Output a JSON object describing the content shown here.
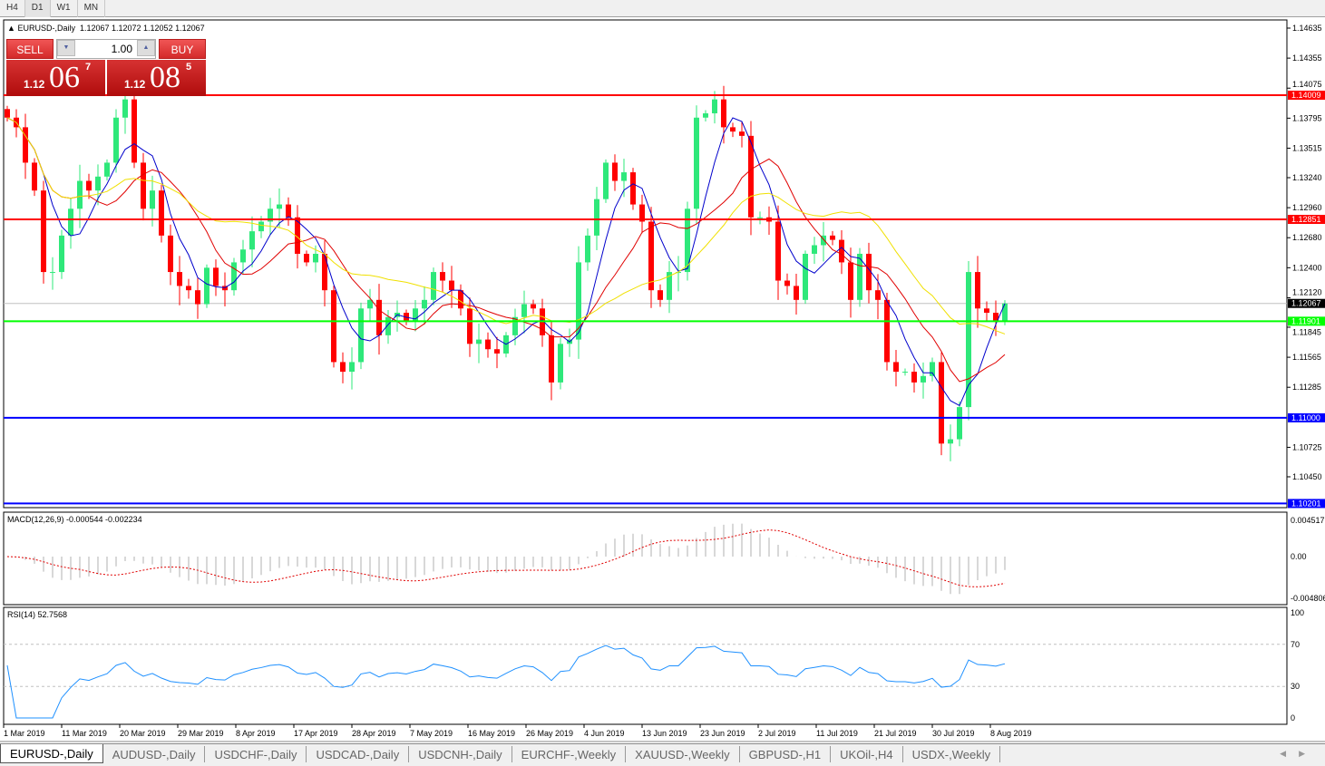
{
  "timeframes": [
    "H4",
    "D1",
    "W1",
    "MN"
  ],
  "active_timeframe": "D1",
  "chart": {
    "title": "EURUSD-,Daily",
    "ohlc_text": "1.12067 1.12072 1.12052 1.12067",
    "collapse_icon": "triangle-up-icon"
  },
  "trade_panel": {
    "sell_label": "SELL",
    "buy_label": "BUY",
    "lot": "1.00",
    "sell_price": {
      "prefix": "1.12",
      "big": "06",
      "sup": "7"
    },
    "buy_price": {
      "prefix": "1.12",
      "big": "08",
      "sup": "5"
    }
  },
  "price_axis": [
    "1.14635",
    "1.14355",
    "1.14075",
    "1.13795",
    "1.13515",
    "1.13240",
    "1.12960",
    "1.12680",
    "1.12400",
    "1.12120",
    "1.11845",
    "1.11565",
    "1.11285",
    "1.10725",
    "1.10450"
  ],
  "hlines": [
    {
      "value": "1.14009",
      "color": "#ff0000"
    },
    {
      "value": "1.12851",
      "color": "#ff0000"
    },
    {
      "value": "1.11901",
      "color": "#00ff00"
    },
    {
      "value": "1.11000",
      "color": "#0000ff"
    },
    {
      "value": "1.10201",
      "color": "#0000ff"
    }
  ],
  "current_price": "1.12067",
  "closes": [
    1.138,
    1.1371,
    1.1338,
    1.1312,
    1.1236,
    1.1236,
    1.127,
    1.1295,
    1.1321,
    1.1312,
    1.1325,
    1.1338,
    1.138,
    1.1397,
    1.1338,
    1.1295,
    1.1312,
    1.127,
    1.1236,
    1.1223,
    1.1219,
    1.1206,
    1.124,
    1.1223,
    1.1219,
    1.1245,
    1.1257,
    1.1274,
    1.1283,
    1.1295,
    1.1299,
    1.1287,
    1.1253,
    1.1245,
    1.1253,
    1.1219,
    1.1152,
    1.1143,
    1.1152,
    1.1202,
    1.121,
    1.1177,
    1.1194,
    1.1198,
    1.119,
    1.1202,
    1.121,
    1.1236,
    1.1228,
    1.1219,
    1.1202,
    1.1169,
    1.1173,
    1.1164,
    1.116,
    1.1177,
    1.1194,
    1.1206,
    1.1202,
    1.1177,
    1.1133,
    1.1169,
    1.1173,
    1.1245,
    1.127,
    1.1304,
    1.1338,
    1.1321,
    1.1329,
    1.1299,
    1.1283,
    1.1219,
    1.121,
    1.1236,
    1.1236,
    1.1295,
    1.138,
    1.1384,
    1.1397,
    1.1371,
    1.1367,
    1.1363,
    1.1287,
    1.1287,
    1.1283,
    1.1228,
    1.1223,
    1.121,
    1.1253,
    1.1261,
    1.127,
    1.1266,
    1.1245,
    1.121,
    1.1253,
    1.1219,
    1.121,
    1.1152,
    1.1143,
    1.1143,
    1.1133,
    1.1139,
    1.1152,
    1.1076,
    1.108,
    1.111,
    1.1236,
    1.1202,
    1.1198,
    1.119,
    1.12067
  ],
  "colors": {
    "bull": "#2ee87a",
    "bear": "#ff0000",
    "ma_fast": "#0000cc",
    "ma_mid": "#e00000",
    "ma_slow": "#f0e000"
  },
  "macd": {
    "label": "MACD(12,26,9) -0.000544 -0.002234",
    "axis": [
      "0.004517",
      "0.00",
      "-0.004806"
    ]
  },
  "rsi": {
    "label": "RSI(14) 52.7568",
    "axis": [
      "100",
      "70",
      "30",
      "0"
    ]
  },
  "dates": [
    "1 Mar 2019",
    "11 Mar 2019",
    "20 Mar 2019",
    "29 Mar 2019",
    "8 Apr 2019",
    "17 Apr 2019",
    "28 Apr 2019",
    "7 May 2019",
    "16 May 2019",
    "26 May 2019",
    "4 Jun 2019",
    "13 Jun 2019",
    "23 Jun 2019",
    "2 Jul 2019",
    "11 Jul 2019",
    "21 Jul 2019",
    "30 Jul 2019",
    "8 Aug 2019"
  ],
  "tabs": [
    "EURUSD-,Daily",
    "AUDUSD-,Daily",
    "USDCHF-,Daily",
    "USDCAD-,Daily",
    "USDCNH-,Daily",
    "EURCHF-,Weekly",
    "XAUUSD-,Weekly",
    "GBPUSD-,H1",
    "UKOil-,H4",
    "USDX-,Weekly"
  ],
  "active_tab": "EURUSD-,Daily"
}
